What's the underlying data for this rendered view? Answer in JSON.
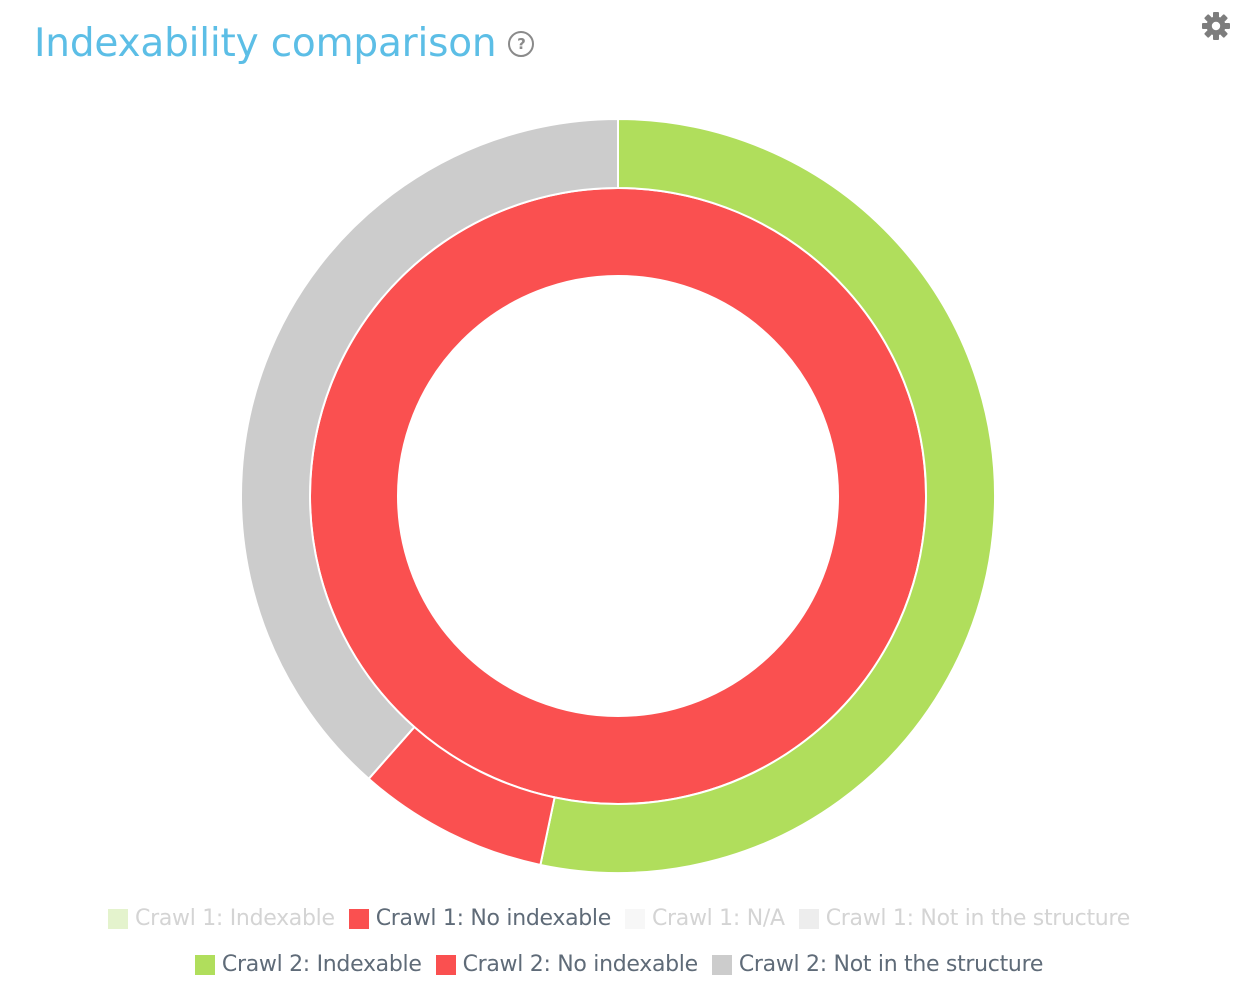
{
  "header": {
    "title": "Indexability comparison",
    "help_glyph": "?",
    "help_icon": "question-circle-icon",
    "settings_icon": "gear-icon"
  },
  "chart_data": {
    "type": "pie",
    "subtype": "nested-donut",
    "title": "Indexability comparison",
    "rings": [
      {
        "name": "Crawl 1",
        "position": "inner",
        "slices": [
          {
            "label": "Crawl 1: No indexable",
            "value": 100,
            "color": "#fa5050"
          }
        ]
      },
      {
        "name": "Crawl 2",
        "position": "outer",
        "slices": [
          {
            "label": "Crawl 2: Indexable",
            "value": 53.3,
            "color": "#b0de5c"
          },
          {
            "label": "Crawl 2: No indexable",
            "value": 8.2,
            "color": "#fa5050"
          },
          {
            "label": "Crawl 2: Not in the structure",
            "value": 38.5,
            "color": "#cccccc"
          }
        ]
      }
    ],
    "legend_placement": "bottom"
  },
  "legend": {
    "row1": [
      {
        "label": "Crawl 1: Indexable",
        "color": "#e4f3cd",
        "hidden": true
      },
      {
        "label": "Crawl 1: No indexable",
        "color": "#fa5050",
        "hidden": false
      },
      {
        "label": "Crawl 1: N/A",
        "color": "#f7f7f7",
        "hidden": true
      },
      {
        "label": "Crawl 1: Not in the structure",
        "color": "#ededed",
        "hidden": true
      }
    ],
    "row2": [
      {
        "label": "Crawl 2: Indexable",
        "color": "#b0de5c",
        "hidden": false
      },
      {
        "label": "Crawl 2: No indexable",
        "color": "#fa5050",
        "hidden": false
      },
      {
        "label": "Crawl 2: Not in the structure",
        "color": "#cccccc",
        "hidden": false
      }
    ]
  }
}
